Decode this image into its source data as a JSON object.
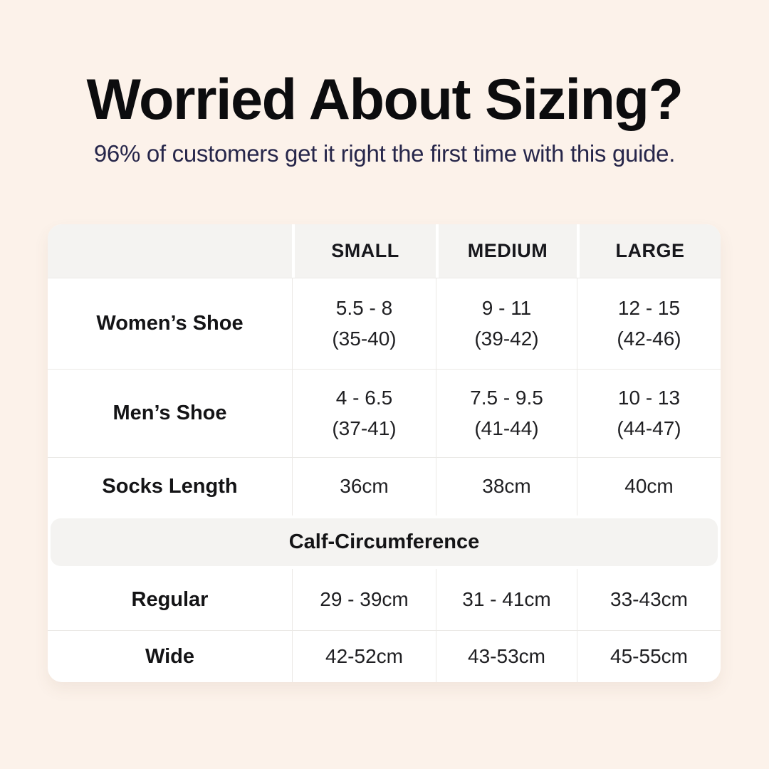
{
  "page_background": "#fcf2ea",
  "accent_colors": {
    "title_text": "#0c0c0e",
    "subtitle_text": "#26264a",
    "card_background": "#ffffff",
    "band_background": "#f4f3f1",
    "divider": "#ebe9e6"
  },
  "header": {
    "title": "Worried About Sizing?",
    "subtitle": "96% of customers get it right the first time with this guide."
  },
  "table": {
    "column_headers": [
      "SMALL",
      "MEDIUM",
      "LARGE"
    ],
    "rows": [
      {
        "label": "Women’s Shoe",
        "cells": [
          {
            "line1": "5.5 - 8",
            "line2": "(35-40)"
          },
          {
            "line1": "9 - 11",
            "line2": "(39-42)"
          },
          {
            "line1": "12 - 15",
            "line2": "(42-46)"
          }
        ]
      },
      {
        "label": "Men’s Shoe",
        "cells": [
          {
            "line1": "4 - 6.5",
            "line2": "(37-41)"
          },
          {
            "line1": "7.5 - 9.5",
            "line2": "(41-44)"
          },
          {
            "line1": "10 - 13",
            "line2": "(44-47)"
          }
        ]
      },
      {
        "label": "Socks Length",
        "cells": [
          {
            "line1": "36cm"
          },
          {
            "line1": "38cm"
          },
          {
            "line1": "40cm"
          }
        ]
      }
    ],
    "section_title": "Calf-Circumference",
    "calf_rows": [
      {
        "label": "Regular",
        "cells": [
          "29 - 39cm",
          "31 - 41cm",
          "33-43cm"
        ]
      },
      {
        "label": "Wide",
        "cells": [
          "42-52cm",
          "43-53cm",
          "45-55cm"
        ]
      }
    ]
  },
  "chart_data": {
    "type": "table",
    "title": "Worried About Sizing?",
    "subtitle": "96% of customers get it right the first time with this guide.",
    "columns": [
      "",
      "SMALL",
      "MEDIUM",
      "LARGE"
    ],
    "rows": [
      [
        "Women’s Shoe",
        "5.5 - 8 (35-40)",
        "9 - 11 (39-42)",
        "12 - 15 (42-46)"
      ],
      [
        "Men’s Shoe",
        "4 - 6.5 (37-41)",
        "7.5 - 9.5 (41-44)",
        "10 - 13 (44-47)"
      ],
      [
        "Socks Length",
        "36cm",
        "38cm",
        "40cm"
      ],
      [
        "Calf-Circumference",
        "",
        "",
        ""
      ],
      [
        "Regular",
        "29 - 39cm",
        "31 - 41cm",
        "33-43cm"
      ],
      [
        "Wide",
        "42-52cm",
        "43-53cm",
        "45-55cm"
      ]
    ]
  }
}
